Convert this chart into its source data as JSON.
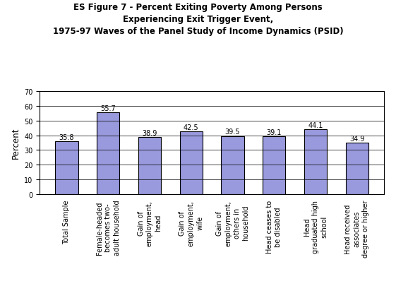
{
  "title_line1": "ES Figure 7 - Percent Exiting Poverty Among Persons",
  "title_line2": "Experiencing Exit Trigger Event,",
  "title_line3": "1975-97 Waves of the Panel Study of Income Dynamics (PSID)",
  "categories": [
    "Total Sample",
    "Female-headed\nbecomes two-\nadult household",
    "Gain of\nemployment,\nhead",
    "Gain of\nemployment,\nwife",
    "Gain of\nemployment,\nothers in\nhousehold",
    "Head ceases to\nbe disabled",
    "Head\ngraduated high\nschool",
    "Head received\nassociates\ndegree or higher"
  ],
  "values": [
    35.8,
    55.7,
    38.9,
    42.5,
    39.5,
    39.1,
    44.1,
    34.9
  ],
  "bar_color": "#9999dd",
  "bar_edge_color": "#000000",
  "ylabel": "Percent",
  "ylim": [
    0,
    70
  ],
  "yticks": [
    0,
    10,
    20,
    30,
    40,
    50,
    60,
    70
  ],
  "grid_color": "#000000",
  "background_color": "#ffffff",
  "plot_bg_color": "#ffffff",
  "title_fontsize": 8.5,
  "label_fontsize": 7,
  "value_fontsize": 7,
  "ylabel_fontsize": 8.5
}
